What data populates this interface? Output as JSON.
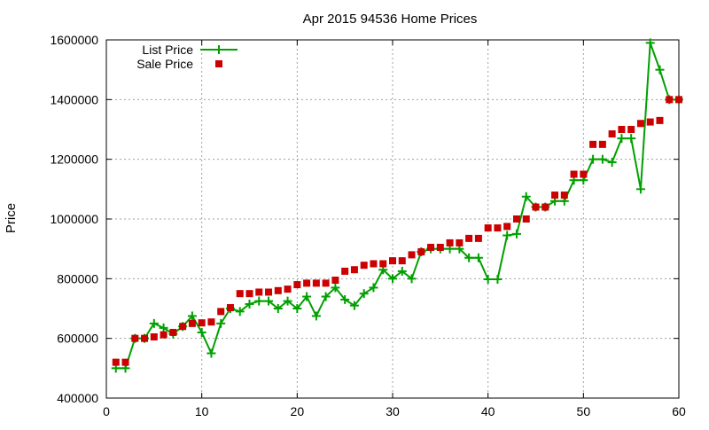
{
  "chart_data": {
    "type": "line",
    "title": "Apr 2015 94536 Home Prices",
    "xlabel": "",
    "ylabel": "Price",
    "xlim": [
      0,
      60
    ],
    "ylim": [
      400000,
      1600000
    ],
    "x_ticks": [
      0,
      10,
      20,
      30,
      40,
      50,
      60
    ],
    "y_ticks": [
      400000,
      600000,
      800000,
      1000000,
      1200000,
      1400000,
      1600000
    ],
    "grid": true,
    "legend_position": "top-left",
    "series": [
      {
        "name": "List Price",
        "style": "line+cross",
        "color": "#00a000",
        "x": [
          1,
          2,
          3,
          4,
          5,
          6,
          7,
          8,
          9,
          10,
          11,
          12,
          13,
          14,
          15,
          16,
          17,
          18,
          19,
          20,
          21,
          22,
          23,
          24,
          25,
          26,
          27,
          28,
          29,
          30,
          31,
          32,
          33,
          34,
          35,
          36,
          37,
          38,
          39,
          40,
          41,
          42,
          43,
          44,
          45,
          46,
          47,
          48,
          49,
          50,
          51,
          52,
          53,
          54,
          55,
          56,
          57,
          58,
          59,
          60
        ],
        "values": [
          500000,
          500000,
          600000,
          600000,
          650000,
          635000,
          615000,
          640000,
          675000,
          620000,
          550000,
          650000,
          700000,
          690000,
          715000,
          725000,
          725000,
          700000,
          725000,
          700000,
          740000,
          675000,
          740000,
          770000,
          730000,
          710000,
          750000,
          770000,
          830000,
          800000,
          825000,
          800000,
          890000,
          900000,
          900000,
          900000,
          900000,
          870000,
          870000,
          798000,
          798000,
          945000,
          950000,
          1075000,
          1040000,
          1040000,
          1060000,
          1060000,
          1130000,
          1130000,
          1200000,
          1200000,
          1190000,
          1270000,
          1270000,
          1100000,
          1590000,
          1500000,
          1400000,
          1400000
        ]
      },
      {
        "name": "Sale Price",
        "style": "square-points",
        "color": "#cc0000",
        "x": [
          1,
          2,
          3,
          4,
          5,
          6,
          7,
          8,
          9,
          10,
          11,
          12,
          13,
          14,
          15,
          16,
          17,
          18,
          19,
          20,
          21,
          22,
          23,
          24,
          25,
          26,
          27,
          28,
          29,
          30,
          31,
          32,
          33,
          34,
          35,
          36,
          37,
          38,
          39,
          40,
          41,
          42,
          43,
          44,
          45,
          46,
          47,
          48,
          49,
          50,
          51,
          52,
          53,
          54,
          55,
          56,
          57,
          58,
          59,
          60
        ],
        "values": [
          520000,
          520000,
          600000,
          600000,
          605000,
          612000,
          620000,
          640000,
          650000,
          652000,
          655000,
          690000,
          703000,
          750000,
          750000,
          755000,
          755000,
          760000,
          765000,
          780000,
          785000,
          785000,
          785000,
          795000,
          825000,
          830000,
          845000,
          850000,
          850000,
          860000,
          860000,
          880000,
          890000,
          905000,
          905000,
          920000,
          920000,
          935000,
          935000,
          970000,
          970000,
          975000,
          1000000,
          1000000,
          1040000,
          1040000,
          1080000,
          1080000,
          1150000,
          1150000,
          1250000,
          1250000,
          1285000,
          1300000,
          1300000,
          1320000,
          1325000,
          1330000,
          1400000,
          1400000
        ]
      }
    ]
  }
}
